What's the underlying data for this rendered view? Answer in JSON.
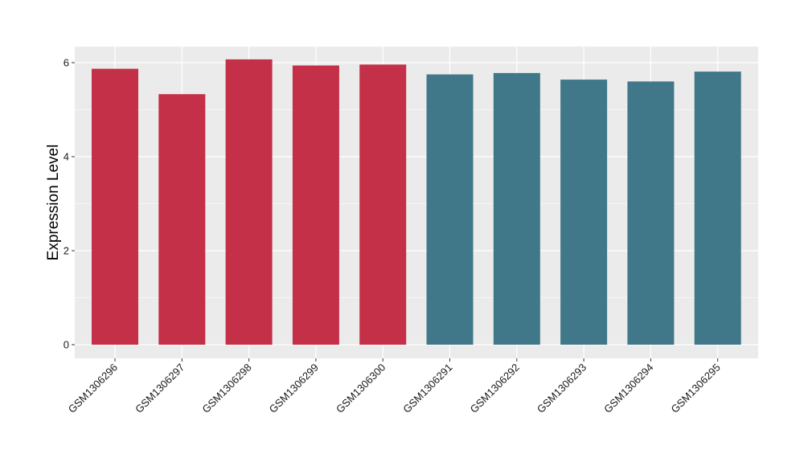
{
  "chart_data": {
    "type": "bar",
    "title": "",
    "xlabel": "",
    "ylabel": "Expression Level",
    "ylim": [
      0,
      6.3
    ],
    "yticks": [
      0,
      2,
      4,
      6
    ],
    "grid": true,
    "categories": [
      "GSM1306296",
      "GSM1306297",
      "GSM1306298",
      "GSM1306299",
      "GSM1306300",
      "GSM1306291",
      "GSM1306292",
      "GSM1306293",
      "GSM1306294",
      "GSM1306295"
    ],
    "values": [
      5.87,
      5.33,
      6.07,
      5.94,
      5.96,
      5.75,
      5.78,
      5.64,
      5.6,
      5.81
    ],
    "bar_colors": [
      "#c33047",
      "#c33047",
      "#c33047",
      "#c33047",
      "#c33047",
      "#417889",
      "#417889",
      "#417889",
      "#417889",
      "#417889"
    ],
    "panel_background": "#ebebeb",
    "grid_color": "#ffffff"
  }
}
